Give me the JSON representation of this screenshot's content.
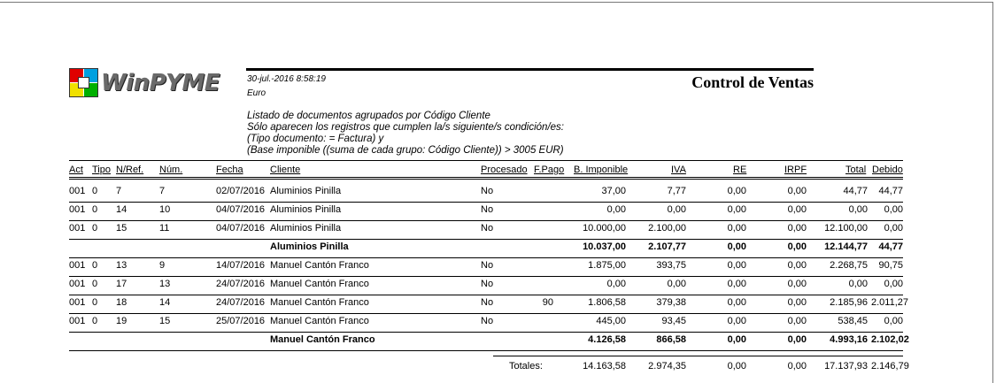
{
  "logo": {
    "text": "WinPYME",
    "colors": [
      "#e00000",
      "#00a0e0",
      "#f0e000",
      "#00b000"
    ]
  },
  "header": {
    "datetime": "30-jul.-2016   8:58:19",
    "currency": "Euro",
    "title": "Control de Ventas",
    "description": [
      "Listado de documentos agrupados por Código Cliente",
      "Sólo aparecen los registros que cumplen la/s siguiente/s condición/es:",
      "(Tipo documento: = Factura) y",
      "(Base imponible ((suma de cada grupo: Código Cliente)) > 3005 EUR)"
    ]
  },
  "columns": [
    "Act",
    "Tipo",
    "N/Ref.",
    "Núm.",
    "Fecha",
    "Cliente",
    "Procesado",
    "F.Pago",
    "B. Imponible",
    "IVA",
    "RE",
    "IRPF",
    "Total",
    "Debido"
  ],
  "groups": [
    {
      "rows": [
        [
          "001",
          "0",
          "7",
          "7",
          "02/07/2016",
          "Aluminios Pinilla",
          "No",
          "",
          "37,00",
          "7,77",
          "0,00",
          "0,00",
          "44,77",
          "44,77"
        ],
        [
          "001",
          "0",
          "14",
          "10",
          "04/07/2016",
          "Aluminios Pinilla",
          "No",
          "",
          "0,00",
          "0,00",
          "0,00",
          "0,00",
          "0,00",
          "0,00"
        ],
        [
          "001",
          "0",
          "15",
          "11",
          "04/07/2016",
          "Aluminios Pinilla",
          "No",
          "",
          "10.000,00",
          "2.100,00",
          "0,00",
          "0,00",
          "12.100,00",
          "0,00"
        ]
      ],
      "subtotal": {
        "name": "Aluminios Pinilla",
        "values": [
          "10.037,00",
          "2.107,77",
          "0,00",
          "0,00",
          "12.144,77",
          "44,77"
        ]
      }
    },
    {
      "rows": [
        [
          "001",
          "0",
          "13",
          "9",
          "14/07/2016",
          "Manuel Cantón Franco",
          "No",
          "",
          "1.875,00",
          "393,75",
          "0,00",
          "0,00",
          "2.268,75",
          "90,75"
        ],
        [
          "001",
          "0",
          "17",
          "13",
          "24/07/2016",
          "Manuel Cantón Franco",
          "No",
          "",
          "0,00",
          "0,00",
          "0,00",
          "0,00",
          "0,00",
          "0,00"
        ],
        [
          "001",
          "0",
          "18",
          "14",
          "24/07/2016",
          "Manuel Cantón Franco",
          "No",
          "90",
          "1.806,58",
          "379,38",
          "0,00",
          "0,00",
          "2.185,96",
          "2.011,27"
        ],
        [
          "001",
          "0",
          "19",
          "15",
          "25/07/2016",
          "Manuel Cantón Franco",
          "No",
          "",
          "445,00",
          "93,45",
          "0,00",
          "0,00",
          "538,45",
          "0,00"
        ]
      ],
      "subtotal": {
        "name": "Manuel Cantón Franco",
        "values": [
          "4.126,58",
          "866,58",
          "0,00",
          "0,00",
          "4.993,16",
          "2.102,02"
        ]
      }
    }
  ],
  "totals": {
    "label": "Totales:",
    "values": [
      "14.163,58",
      "2.974,35",
      "0,00",
      "0,00",
      "17.137,93",
      "2.146,79"
    ]
  }
}
